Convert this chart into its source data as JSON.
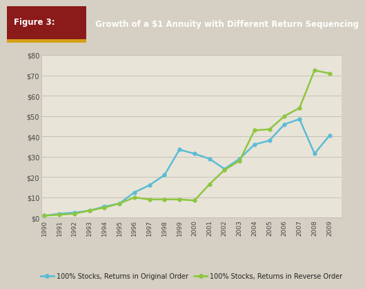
{
  "years": [
    1990,
    1991,
    1992,
    1993,
    1994,
    1995,
    1996,
    1997,
    1998,
    1999,
    2000,
    2001,
    2002,
    2003,
    2004,
    2005,
    2006,
    2007,
    2008,
    2009
  ],
  "original_order": [
    1.0,
    2.0,
    2.5,
    3.5,
    5.5,
    7.0,
    12.5,
    16.0,
    21.0,
    33.5,
    31.5,
    29.0,
    24.0,
    29.0,
    36.0,
    38.0,
    46.0,
    48.5,
    31.5,
    40.5
  ],
  "reverse_order": [
    1.0,
    1.5,
    2.0,
    3.5,
    5.0,
    7.0,
    10.0,
    9.0,
    9.0,
    9.0,
    8.5,
    16.5,
    23.5,
    28.0,
    43.0,
    43.5,
    50.0,
    54.0,
    72.5,
    71.0
  ],
  "original_color": "#5bbcd6",
  "reverse_color": "#8dc63f",
  "line_width": 1.8,
  "ylim": [
    0,
    80
  ],
  "yticks": [
    0,
    10,
    20,
    30,
    40,
    50,
    60,
    70,
    80
  ],
  "ytick_labels": [
    "$0",
    "$10",
    "$20",
    "$30",
    "$40",
    "$50",
    "$60",
    "$70",
    "$80"
  ],
  "background_color": "#d5d0c3",
  "plot_bg_color": "#e8e4d8",
  "header_bg_color": "#111111",
  "figure_label_bg": "#8b1a1a",
  "gold_color": "#d4a017",
  "figure_label": "Figure 3:",
  "title": "Growth of a $1 Annuity with Different Return Sequencing",
  "legend1": "100% Stocks, Returns in Original Order",
  "legend2": "100% Stocks, Returns in Reverse Order",
  "grid_color": "#c0bbb0",
  "tick_color": "#444444",
  "label_color": "#222222"
}
